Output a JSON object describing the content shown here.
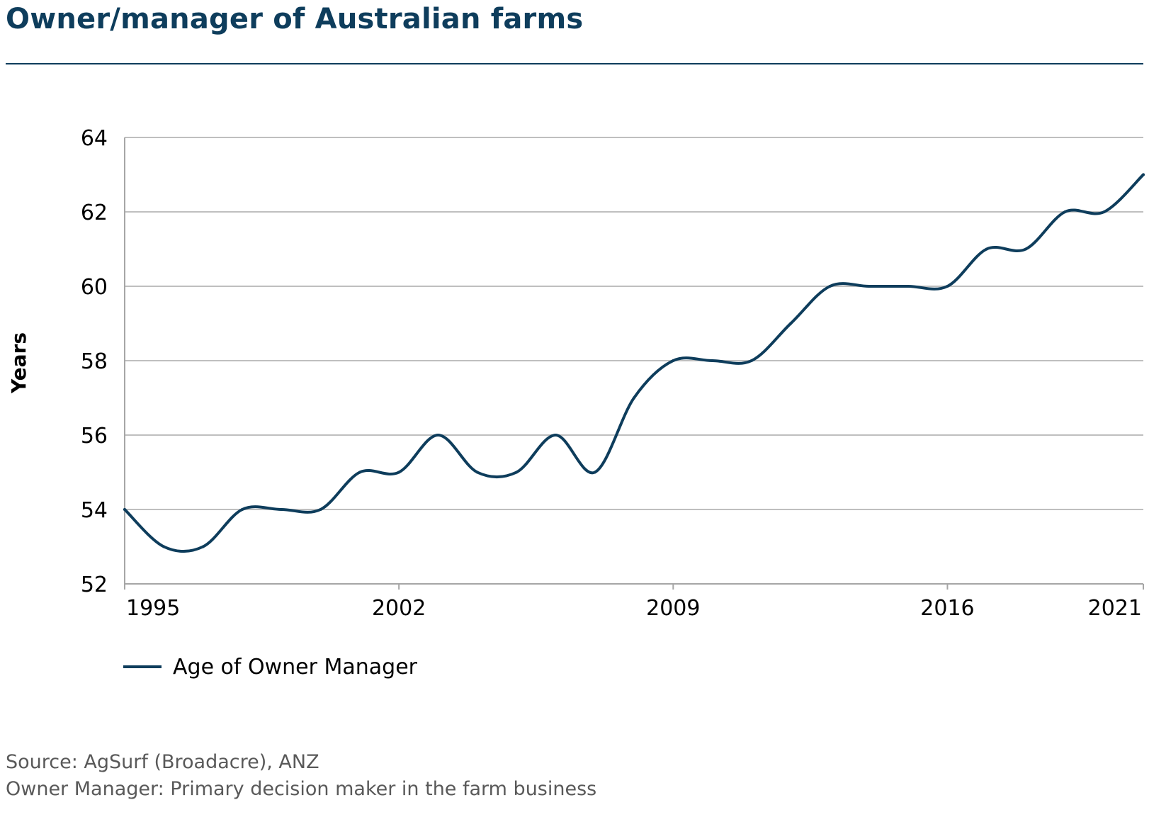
{
  "title": "Owner/manager of Australian farms",
  "source_lines": [
    "Source: AgSurf (Broadacre), ANZ",
    "Owner Manager: Primary decision maker in the farm business"
  ],
  "colors": {
    "title": "#0e3d5c",
    "series": "#0e3d5c",
    "grid": "#bfbfbf",
    "axis": "#a6a6a6",
    "source_text": "#595959"
  },
  "chart_data": {
    "type": "line",
    "title": "Owner/manager of Australian farms",
    "xlabel": "",
    "ylabel": "Years",
    "x": [
      1995,
      1996,
      1997,
      1998,
      1999,
      2000,
      2001,
      2002,
      2003,
      2004,
      2005,
      2006,
      2007,
      2008,
      2009,
      2010,
      2011,
      2012,
      2013,
      2014,
      2015,
      2016,
      2017,
      2018,
      2019,
      2020,
      2021
    ],
    "x_tick_labels": [
      "1995",
      "2002",
      "2009",
      "2016",
      "2021"
    ],
    "xlim": [
      1995,
      2021
    ],
    "ylim": [
      52,
      64
    ],
    "y_ticks": [
      52,
      54,
      56,
      58,
      60,
      62,
      64
    ],
    "grid": "horizontal",
    "legend_position": "bottom-left",
    "series": [
      {
        "name": "Age of Owner Manager",
        "values": [
          54,
          53,
          53,
          54,
          54,
          54,
          55,
          55,
          56,
          55,
          55,
          56,
          55,
          57,
          58,
          58,
          58,
          59,
          60,
          60,
          60,
          60,
          61,
          61,
          62,
          62,
          63
        ]
      }
    ]
  }
}
